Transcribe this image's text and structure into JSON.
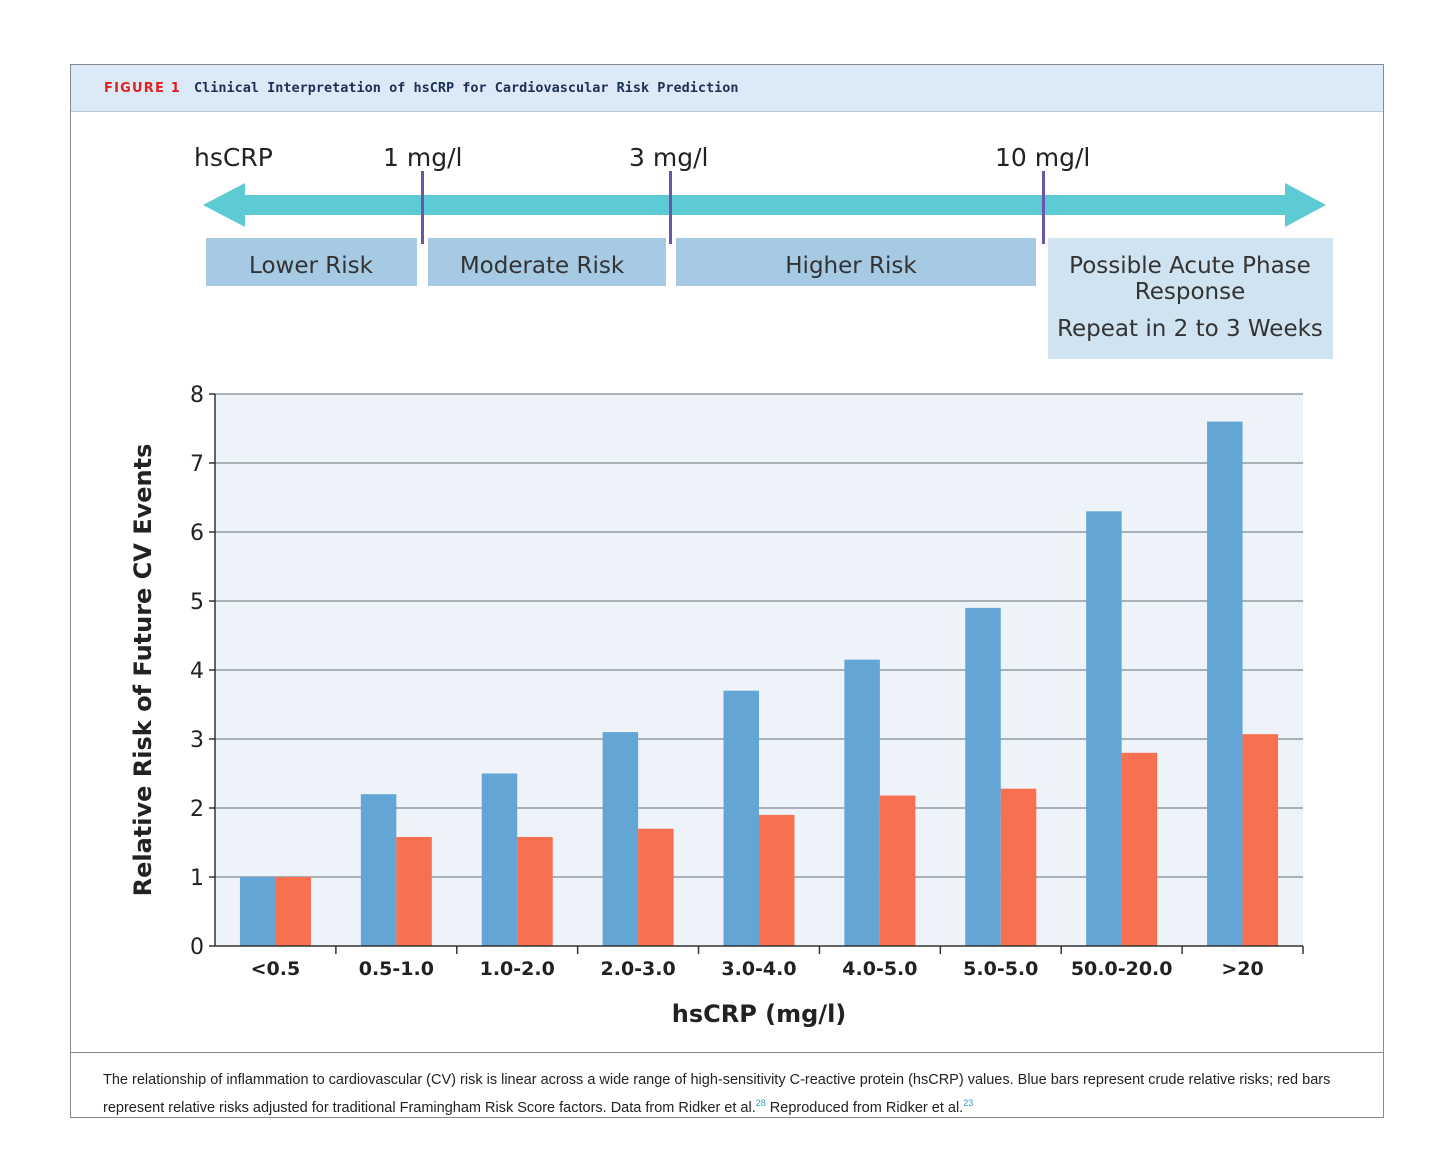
{
  "figure": {
    "label": "FIGURE 1",
    "title": "Clinical Interpretation of hsCRP for Cardiovascular Risk Prediction",
    "caption_parts": [
      "The relationship of inflammation to cardiovascular (CV) risk is linear across a wide range of high-sensitivity C-reactive protein (hsCRP) values. Blue bars represent crude relative risks; red bars represent relative risks adjusted for traditional Framingham Risk Score factors. Data from Ridker et al.",
      "28",
      " Reproduced from Ridker et al.",
      "23"
    ]
  },
  "scale": {
    "label": "hsCRP",
    "markers": [
      "1 mg/l",
      "3 mg/l",
      "10 mg/l"
    ],
    "zones": [
      "Lower Risk",
      "Moderate Risk",
      "Higher Risk"
    ],
    "acute_zone": [
      "Possible Acute Phase",
      "Response",
      "Repeat in 2 to 3 Weeks"
    ]
  },
  "colors": {
    "crude": "#63a5d4",
    "adjusted": "#f7704f",
    "arrow": "#5ccbd3",
    "zone": "#a6c9e4",
    "acute_zone": "#cfe3f1",
    "plot_bg": "#eef3fa"
  },
  "chart_data": {
    "type": "bar",
    "categories": [
      "<0.5",
      "0.5-1.0",
      "1.0-2.0",
      "2.0-3.0",
      "3.0-4.0",
      "4.0-5.0",
      "5.0-5.0",
      "50.0-20.0",
      ">20"
    ],
    "series": [
      {
        "values": [
          1.0,
          2.2,
          2.5,
          3.1,
          3.7,
          4.15,
          4.9,
          6.3,
          7.6
        ]
      },
      {
        "values": [
          1.0,
          1.58,
          1.58,
          1.7,
          1.9,
          2.18,
          2.28,
          2.8,
          3.07
        ]
      }
    ],
    "xlabel": "hsCRP (mg/l)",
    "ylabel": "Relative Risk of Future CV Events",
    "ylim": [
      0,
      8
    ],
    "yticks": [
      0,
      1,
      2,
      3,
      4,
      5,
      6,
      7,
      8
    ],
    "grid": true,
    "legend": "none"
  }
}
